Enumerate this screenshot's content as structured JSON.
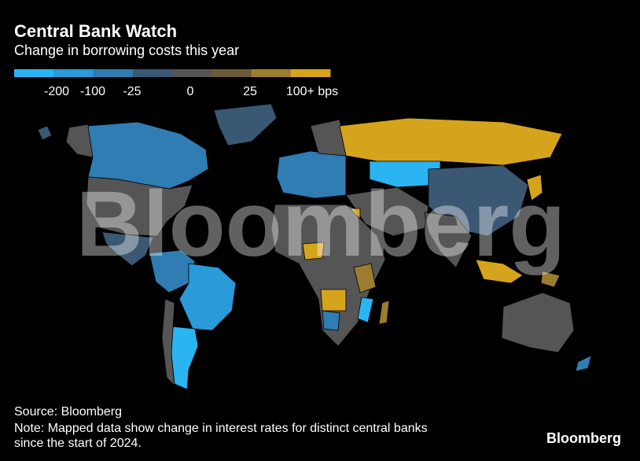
{
  "header": {
    "title": "Central Bank Watch",
    "subtitle": "Change in borrowing costs this year"
  },
  "legend": {
    "colors": [
      "#2ab4f2",
      "#2a9ad8",
      "#2f7db2",
      "#3a5873",
      "#555555",
      "#6a5a36",
      "#9c7c2e",
      "#d6a41c"
    ],
    "labels": [
      "-200",
      "-100",
      "-25",
      "0",
      "25",
      "100+ bps"
    ]
  },
  "watermark": "Bloomberg",
  "footer": {
    "source": "Source: Bloomberg",
    "note": [
      "Note: Mapped data show change in interest rates for distinct central banks",
      "since the start of 2024."
    ],
    "logo": "Bloomberg"
  }
}
